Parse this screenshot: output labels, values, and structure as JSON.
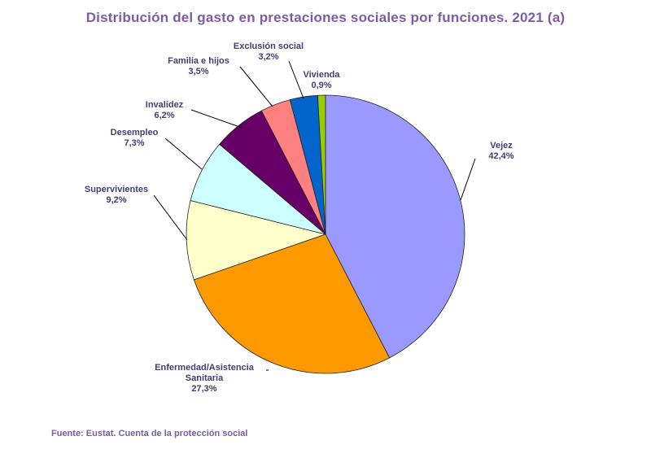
{
  "title": "Distribución  del gasto  en prestaciones  sociales por funciones. 2021 (a)",
  "source": "Fuente: Eustat.  Cuenta de la protección social",
  "chart_data": {
    "type": "pie",
    "title": "Distribución  del gasto  en prestaciones  sociales por funciones. 2021 (a)",
    "slices": [
      {
        "label": [
          "Vejez"
        ],
        "value": 42.4,
        "text": "42,4%",
        "color": "#9999ff"
      },
      {
        "label": [
          "Enfermedad/Asistencia",
          "Sanitaria"
        ],
        "value": 27.3,
        "text": "27,3%",
        "color": "#ff9900"
      },
      {
        "label": [
          "Supervivientes"
        ],
        "value": 9.2,
        "text": "9,2%",
        "color": "#ffffcc"
      },
      {
        "label": [
          "Desempleo"
        ],
        "value": 7.3,
        "text": "7,3%",
        "color": "#ccffff"
      },
      {
        "label": [
          "Invalidez"
        ],
        "value": 6.2,
        "text": "6,2%",
        "color": "#660066"
      },
      {
        "label": [
          "Familia e hijos"
        ],
        "value": 3.5,
        "text": "3,5%",
        "color": "#ff8080"
      },
      {
        "label": [
          "Exclusión social"
        ],
        "value": 3.2,
        "text": "3,2%",
        "color": "#0066cc"
      },
      {
        "label": [
          "Vivienda"
        ],
        "value": 0.9,
        "text": "0,9%",
        "color": "#99cc00"
      }
    ]
  }
}
